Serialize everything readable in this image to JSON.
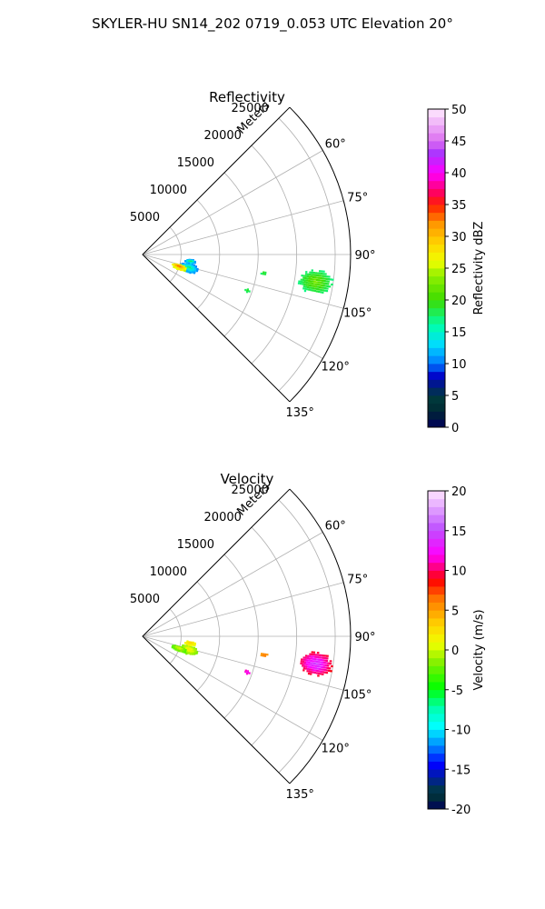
{
  "figure": {
    "suptitle": "SKYLER-HU  SN14_202  0719_0.053 UTC Elevation 20°"
  },
  "chart_data": [
    {
      "type": "polar_sector",
      "title": "Reflectivity",
      "range_label": "Meters",
      "theta_range_deg": [
        45,
        135
      ],
      "r_range_m": [
        0,
        27000
      ],
      "theta_ticks": [
        "60°",
        "75°",
        "90°",
        "105°",
        "120°",
        "135°"
      ],
      "r_ticks": [
        "5000",
        "10000",
        "15000",
        "20000",
        "25000"
      ],
      "grid": true,
      "colorbar": {
        "label": "Reflectivity dBZ",
        "range": [
          0,
          50
        ],
        "ticks": [
          "0",
          "5",
          "10",
          "15",
          "20",
          "25",
          "30",
          "35",
          "40",
          "45",
          "50"
        ]
      },
      "cells": [
        {
          "name": "far-storm",
          "theta_range_deg": [
            95,
            103
          ],
          "r_range_m": [
            20500,
            25000
          ],
          "value_range": [
            17,
            24
          ]
        },
        {
          "name": "small-echo-mid",
          "theta_range_deg": [
            98,
            99.5
          ],
          "r_range_m": [
            15500,
            16500
          ],
          "value_range": [
            17,
            22
          ]
        },
        {
          "name": "small-echo-low",
          "theta_range_deg": [
            108,
            110
          ],
          "r_range_m": [
            14000,
            14800
          ],
          "value_range": [
            17,
            20
          ]
        },
        {
          "name": "near-cluster-east",
          "theta_range_deg": [
            101,
            112
          ],
          "r_range_m": [
            5000,
            7500
          ],
          "value_range": [
            10,
            20
          ]
        },
        {
          "name": "near-cluster-core",
          "theta_range_deg": [
            105,
            113
          ],
          "r_range_m": [
            4000,
            6000
          ],
          "value_range": [
            25,
            37
          ]
        },
        {
          "name": "near-cluster-north",
          "theta_range_deg": [
            96,
            101
          ],
          "r_range_m": [
            5500,
            7000
          ],
          "value_range": [
            10,
            22
          ]
        }
      ]
    },
    {
      "type": "polar_sector",
      "title": "Velocity",
      "range_label": "Meters",
      "theta_range_deg": [
        45,
        135
      ],
      "r_range_m": [
        0,
        27000
      ],
      "theta_ticks": [
        "60°",
        "75°",
        "90°",
        "105°",
        "120°",
        "135°"
      ],
      "r_ticks": [
        "5000",
        "10000",
        "15000",
        "20000",
        "25000"
      ],
      "grid": true,
      "colorbar": {
        "label": "Velocity (m/s)",
        "range": [
          -20,
          20
        ],
        "ticks": [
          "-20",
          "-15",
          "-10",
          "-5",
          "0",
          "5",
          "10",
          "15",
          "20"
        ]
      },
      "cells": [
        {
          "name": "far-storm",
          "theta_range_deg": [
            95,
            103
          ],
          "r_range_m": [
            20500,
            25000
          ],
          "value_range": [
            9,
            16
          ]
        },
        {
          "name": "small-echo-mid",
          "theta_range_deg": [
            98,
            99.5
          ],
          "r_range_m": [
            15500,
            16500
          ],
          "value_range": [
            5,
            8
          ]
        },
        {
          "name": "small-echo-low",
          "theta_range_deg": [
            108,
            110
          ],
          "r_range_m": [
            14000,
            14800
          ],
          "value_range": [
            11,
            13
          ]
        },
        {
          "name": "near-cluster-east",
          "theta_range_deg": [
            101,
            112
          ],
          "r_range_m": [
            5000,
            7500
          ],
          "value_range": [
            -2,
            3
          ]
        },
        {
          "name": "near-cluster-core",
          "theta_range_deg": [
            105,
            113
          ],
          "r_range_m": [
            4000,
            6000
          ],
          "value_range": [
            -3,
            2
          ]
        },
        {
          "name": "near-cluster-north",
          "theta_range_deg": [
            96,
            101
          ],
          "r_range_m": [
            5500,
            7000
          ],
          "value_range": [
            1,
            4
          ]
        }
      ]
    }
  ]
}
